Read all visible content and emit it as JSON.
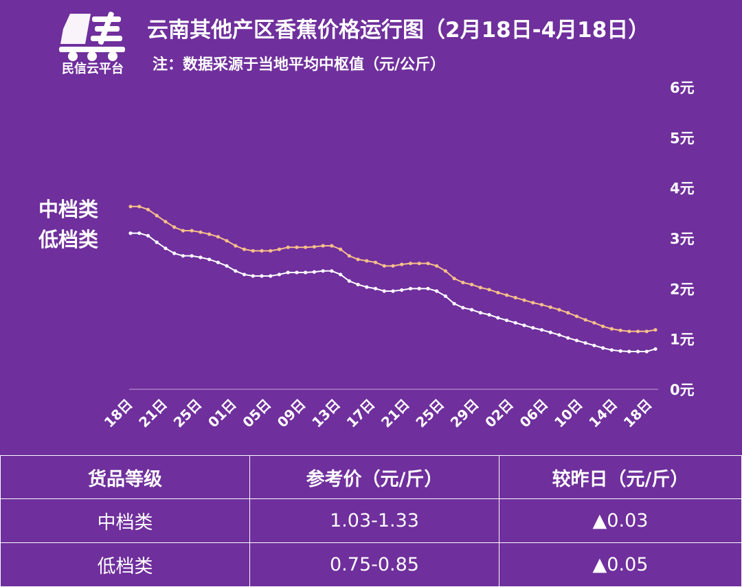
{
  "header": {
    "logo_text": "民信云平台",
    "title": "云南其他产区香蕉价格运行图（2月18日-4月18日）",
    "subtitle": "注：数据采源于当地平均中枢值（元/公斤）"
  },
  "colors": {
    "background": "#6f2f9c",
    "mid_series": "#f6c08a",
    "low_series": "#ffffff",
    "change_up": "#ff6fb5"
  },
  "chart_data": {
    "type": "line",
    "x_tick_labels": [
      "18日",
      "21日",
      "25日",
      "01日",
      "05日",
      "09日",
      "13日",
      "17日",
      "21日",
      "25日",
      "29日",
      "02日",
      "06日",
      "10日",
      "14日",
      "18日"
    ],
    "y_tick_labels": [
      "0元",
      "1元",
      "2元",
      "3元",
      "4元",
      "5元",
      "6元"
    ],
    "ylim": [
      0,
      6
    ],
    "series": [
      {
        "name": "中档类",
        "values": [
          3.63,
          3.63,
          3.57,
          3.45,
          3.33,
          3.22,
          3.15,
          3.15,
          3.12,
          3.08,
          3.03,
          2.95,
          2.85,
          2.78,
          2.75,
          2.75,
          2.75,
          2.78,
          2.82,
          2.82,
          2.82,
          2.83,
          2.85,
          2.85,
          2.78,
          2.65,
          2.58,
          2.55,
          2.52,
          2.45,
          2.45,
          2.48,
          2.5,
          2.5,
          2.5,
          2.45,
          2.35,
          2.2,
          2.12,
          2.08,
          2.02,
          1.98,
          1.92,
          1.87,
          1.82,
          1.77,
          1.72,
          1.68,
          1.63,
          1.58,
          1.52,
          1.45,
          1.38,
          1.32,
          1.25,
          1.2,
          1.17,
          1.15,
          1.15,
          1.15,
          1.18
        ]
      },
      {
        "name": "低档类",
        "values": [
          3.1,
          3.1,
          3.05,
          2.92,
          2.8,
          2.7,
          2.65,
          2.65,
          2.62,
          2.58,
          2.52,
          2.45,
          2.35,
          2.28,
          2.25,
          2.25,
          2.25,
          2.28,
          2.32,
          2.32,
          2.32,
          2.33,
          2.35,
          2.35,
          2.28,
          2.15,
          2.08,
          2.03,
          2.0,
          1.95,
          1.95,
          1.97,
          2.0,
          2.0,
          2.0,
          1.95,
          1.85,
          1.7,
          1.62,
          1.58,
          1.52,
          1.48,
          1.42,
          1.37,
          1.32,
          1.27,
          1.22,
          1.18,
          1.13,
          1.08,
          1.02,
          0.97,
          0.92,
          0.87,
          0.82,
          0.78,
          0.76,
          0.75,
          0.75,
          0.75,
          0.8
        ]
      }
    ],
    "legend_placement": "left"
  },
  "table": {
    "headers": [
      "货品等级",
      "参考价（元/斤）",
      "较昨日（元/斤）"
    ],
    "rows": [
      {
        "grade": "中档类",
        "price": "1.03-1.33",
        "change": "▲0.03"
      },
      {
        "grade": "低档类",
        "price": "0.75-0.85",
        "change": "▲0.05"
      }
    ]
  }
}
